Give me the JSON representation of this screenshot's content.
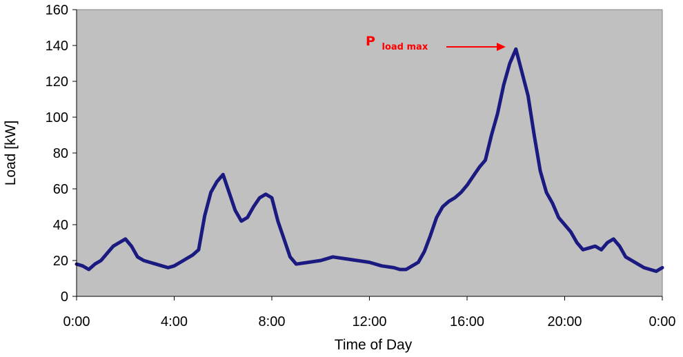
{
  "chart_data": {
    "type": "line",
    "xlabel": "Time of Day",
    "ylabel": "Load [kW]",
    "xlim": [
      0,
      24
    ],
    "ylim": [
      0,
      160
    ],
    "x_ticks": [
      {
        "value": 0,
        "label": "0:00"
      },
      {
        "value": 4,
        "label": "4:00"
      },
      {
        "value": 8,
        "label": "8:00"
      },
      {
        "value": 12,
        "label": "12:00"
      },
      {
        "value": 16,
        "label": "16:00"
      },
      {
        "value": 20,
        "label": "20:00"
      },
      {
        "value": 24,
        "label": "0:00"
      }
    ],
    "y_ticks": [
      0,
      20,
      40,
      60,
      80,
      100,
      120,
      140,
      160
    ],
    "plot_background": "#c0c0c0",
    "series": [
      {
        "color": "#1a1a80",
        "x": [
          0,
          0.25,
          0.5,
          0.75,
          1.0,
          1.25,
          1.5,
          1.75,
          2.0,
          2.25,
          2.5,
          2.75,
          3.0,
          3.25,
          3.5,
          3.75,
          4.0,
          4.25,
          4.5,
          4.75,
          5.0,
          5.25,
          5.5,
          5.75,
          6.0,
          6.25,
          6.5,
          6.75,
          7.0,
          7.25,
          7.5,
          7.75,
          8.0,
          8.25,
          8.5,
          8.75,
          9.0,
          9.5,
          10.0,
          10.5,
          11.0,
          11.5,
          12.0,
          12.5,
          13.0,
          13.25,
          13.5,
          13.75,
          14.0,
          14.25,
          14.5,
          14.75,
          15.0,
          15.25,
          15.5,
          15.75,
          16.0,
          16.25,
          16.5,
          16.75,
          17.0,
          17.25,
          17.5,
          17.75,
          18.0,
          18.25,
          18.5,
          18.75,
          19.0,
          19.25,
          19.5,
          19.75,
          20.0,
          20.25,
          20.5,
          20.75,
          21.0,
          21.25,
          21.5,
          21.75,
          22.0,
          22.25,
          22.5,
          22.75,
          23.0,
          23.25,
          23.5,
          23.75,
          24.0
        ],
        "values": [
          18,
          17,
          15,
          18,
          20,
          24,
          28,
          30,
          32,
          28,
          22,
          20,
          19,
          18,
          17,
          16,
          17,
          19,
          21,
          23,
          26,
          45,
          58,
          64,
          68,
          58,
          48,
          42,
          44,
          50,
          55,
          57,
          55,
          42,
          32,
          22,
          18,
          19,
          20,
          22,
          21,
          20,
          19,
          17,
          16,
          15,
          15,
          17,
          19,
          25,
          34,
          44,
          50,
          53,
          55,
          58,
          62,
          67,
          72,
          76,
          90,
          102,
          118,
          130,
          138,
          125,
          112,
          90,
          70,
          58,
          52,
          44,
          40,
          36,
          30,
          26,
          27,
          28,
          26,
          30,
          32,
          28,
          22,
          20,
          18,
          16,
          15,
          14,
          16
        ]
      }
    ],
    "annotations": [
      {
        "text_main": "P",
        "text_sub": "load max",
        "color": "#ff0000",
        "points_to_x": 18,
        "points_to_y": 138
      }
    ]
  }
}
